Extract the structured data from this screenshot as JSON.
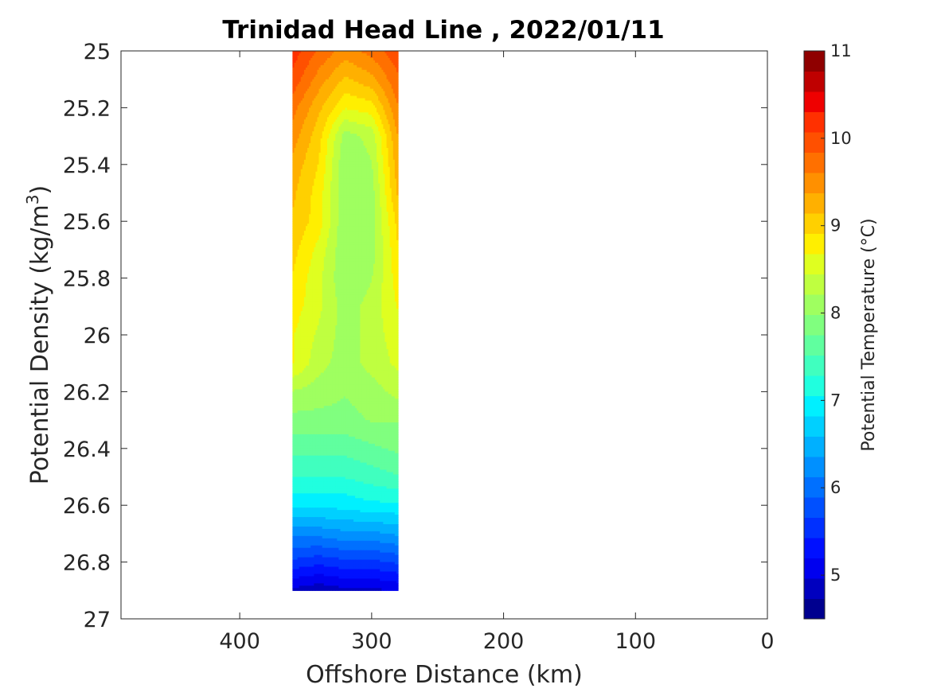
{
  "chart_data": {
    "type": "heatmap",
    "title": "Trinidad Head Line , 2022/01/11",
    "xlabel": "Offshore Distance (km)",
    "ylabel": "Potential Density (kg/m",
    "ylabel_sup": "3",
    "ylabel_end": ")",
    "xlim": [
      490,
      0
    ],
    "ylim": [
      25,
      27
    ],
    "x_reversed": true,
    "y_reversed": true,
    "xticks": [
      400,
      300,
      200,
      100,
      0
    ],
    "xtick_labels": [
      "400",
      "300",
      "200",
      "100",
      "0"
    ],
    "yticks": [
      25,
      25.2,
      25.4,
      25.6,
      25.8,
      26,
      26.2,
      26.4,
      26.6,
      26.8,
      27
    ],
    "ytick_labels": [
      "25",
      "25.2",
      "25.4",
      "25.6",
      "25.8",
      "26",
      "26.2",
      "26.4",
      "26.6",
      "26.8",
      "27"
    ],
    "colorbar": {
      "label": "Potential Temperature (°C)",
      "clim": [
        4.5,
        11
      ],
      "ticks": [
        5,
        6,
        7,
        8,
        9,
        10,
        11
      ],
      "tick_labels": [
        "5",
        "6",
        "7",
        "8",
        "9",
        "10",
        "11"
      ],
      "colormap": "jet",
      "levels": 26,
      "colors": [
        "#00008f",
        "#0000bf",
        "#0000ef",
        "#0010ff",
        "#0030ff",
        "#0050ff",
        "#0070ff",
        "#0090ff",
        "#00b0ff",
        "#00d0ff",
        "#00f0ff",
        "#20ffdf",
        "#40ffbf",
        "#60ff9f",
        "#80ff7f",
        "#9fff60",
        "#bfff40",
        "#dfff20",
        "#ffef00",
        "#ffd000",
        "#ffb000",
        "#ff9000",
        "#ff7000",
        "#ff5000",
        "#ff3000",
        "#ef0000",
        "#bf0000",
        "#8f0000"
      ]
    },
    "x": [
      360,
      340,
      320,
      300,
      280
    ],
    "y": [
      25.0,
      25.1,
      25.2,
      25.3,
      25.4,
      25.5,
      25.6,
      25.7,
      25.8,
      25.9,
      26.0,
      26.1,
      26.2,
      26.3,
      26.4,
      26.5,
      26.6,
      26.7,
      26.8,
      26.9
    ],
    "z": [
      [
        10.2,
        9.8,
        9.5,
        9.7,
        10.0
      ],
      [
        10.0,
        9.5,
        9.1,
        9.3,
        9.8
      ],
      [
        9.7,
        9.2,
        8.7,
        8.8,
        9.6
      ],
      [
        9.5,
        9.0,
        8.1,
        8.3,
        9.4
      ],
      [
        9.3,
        8.9,
        8.0,
        8.2,
        9.3
      ],
      [
        9.2,
        8.8,
        8.0,
        8.1,
        9.2
      ],
      [
        9.1,
        8.8,
        8.0,
        8.1,
        9.0
      ],
      [
        9.0,
        8.6,
        8.0,
        8.1,
        8.9
      ],
      [
        8.9,
        8.5,
        8.0,
        8.2,
        8.8
      ],
      [
        8.8,
        8.5,
        8.1,
        8.3,
        8.7
      ],
      [
        8.7,
        8.4,
        8.1,
        8.3,
        8.6
      ],
      [
        8.7,
        8.3,
        8.1,
        8.3,
        8.5
      ],
      [
        8.2,
        8.1,
        8.0,
        8.1,
        8.3
      ],
      [
        7.9,
        7.9,
        7.9,
        8.0,
        8.0
      ],
      [
        7.6,
        7.6,
        7.6,
        7.7,
        7.8
      ],
      [
        7.3,
        7.3,
        7.3,
        7.4,
        7.5
      ],
      [
        6.9,
        6.9,
        6.9,
        7.0,
        7.0
      ],
      [
        6.2,
        6.2,
        6.3,
        6.3,
        6.4
      ],
      [
        5.6,
        5.5,
        5.6,
        5.6,
        5.7
      ],
      [
        4.9,
        4.8,
        4.9,
        4.9,
        5.0
      ]
    ]
  }
}
